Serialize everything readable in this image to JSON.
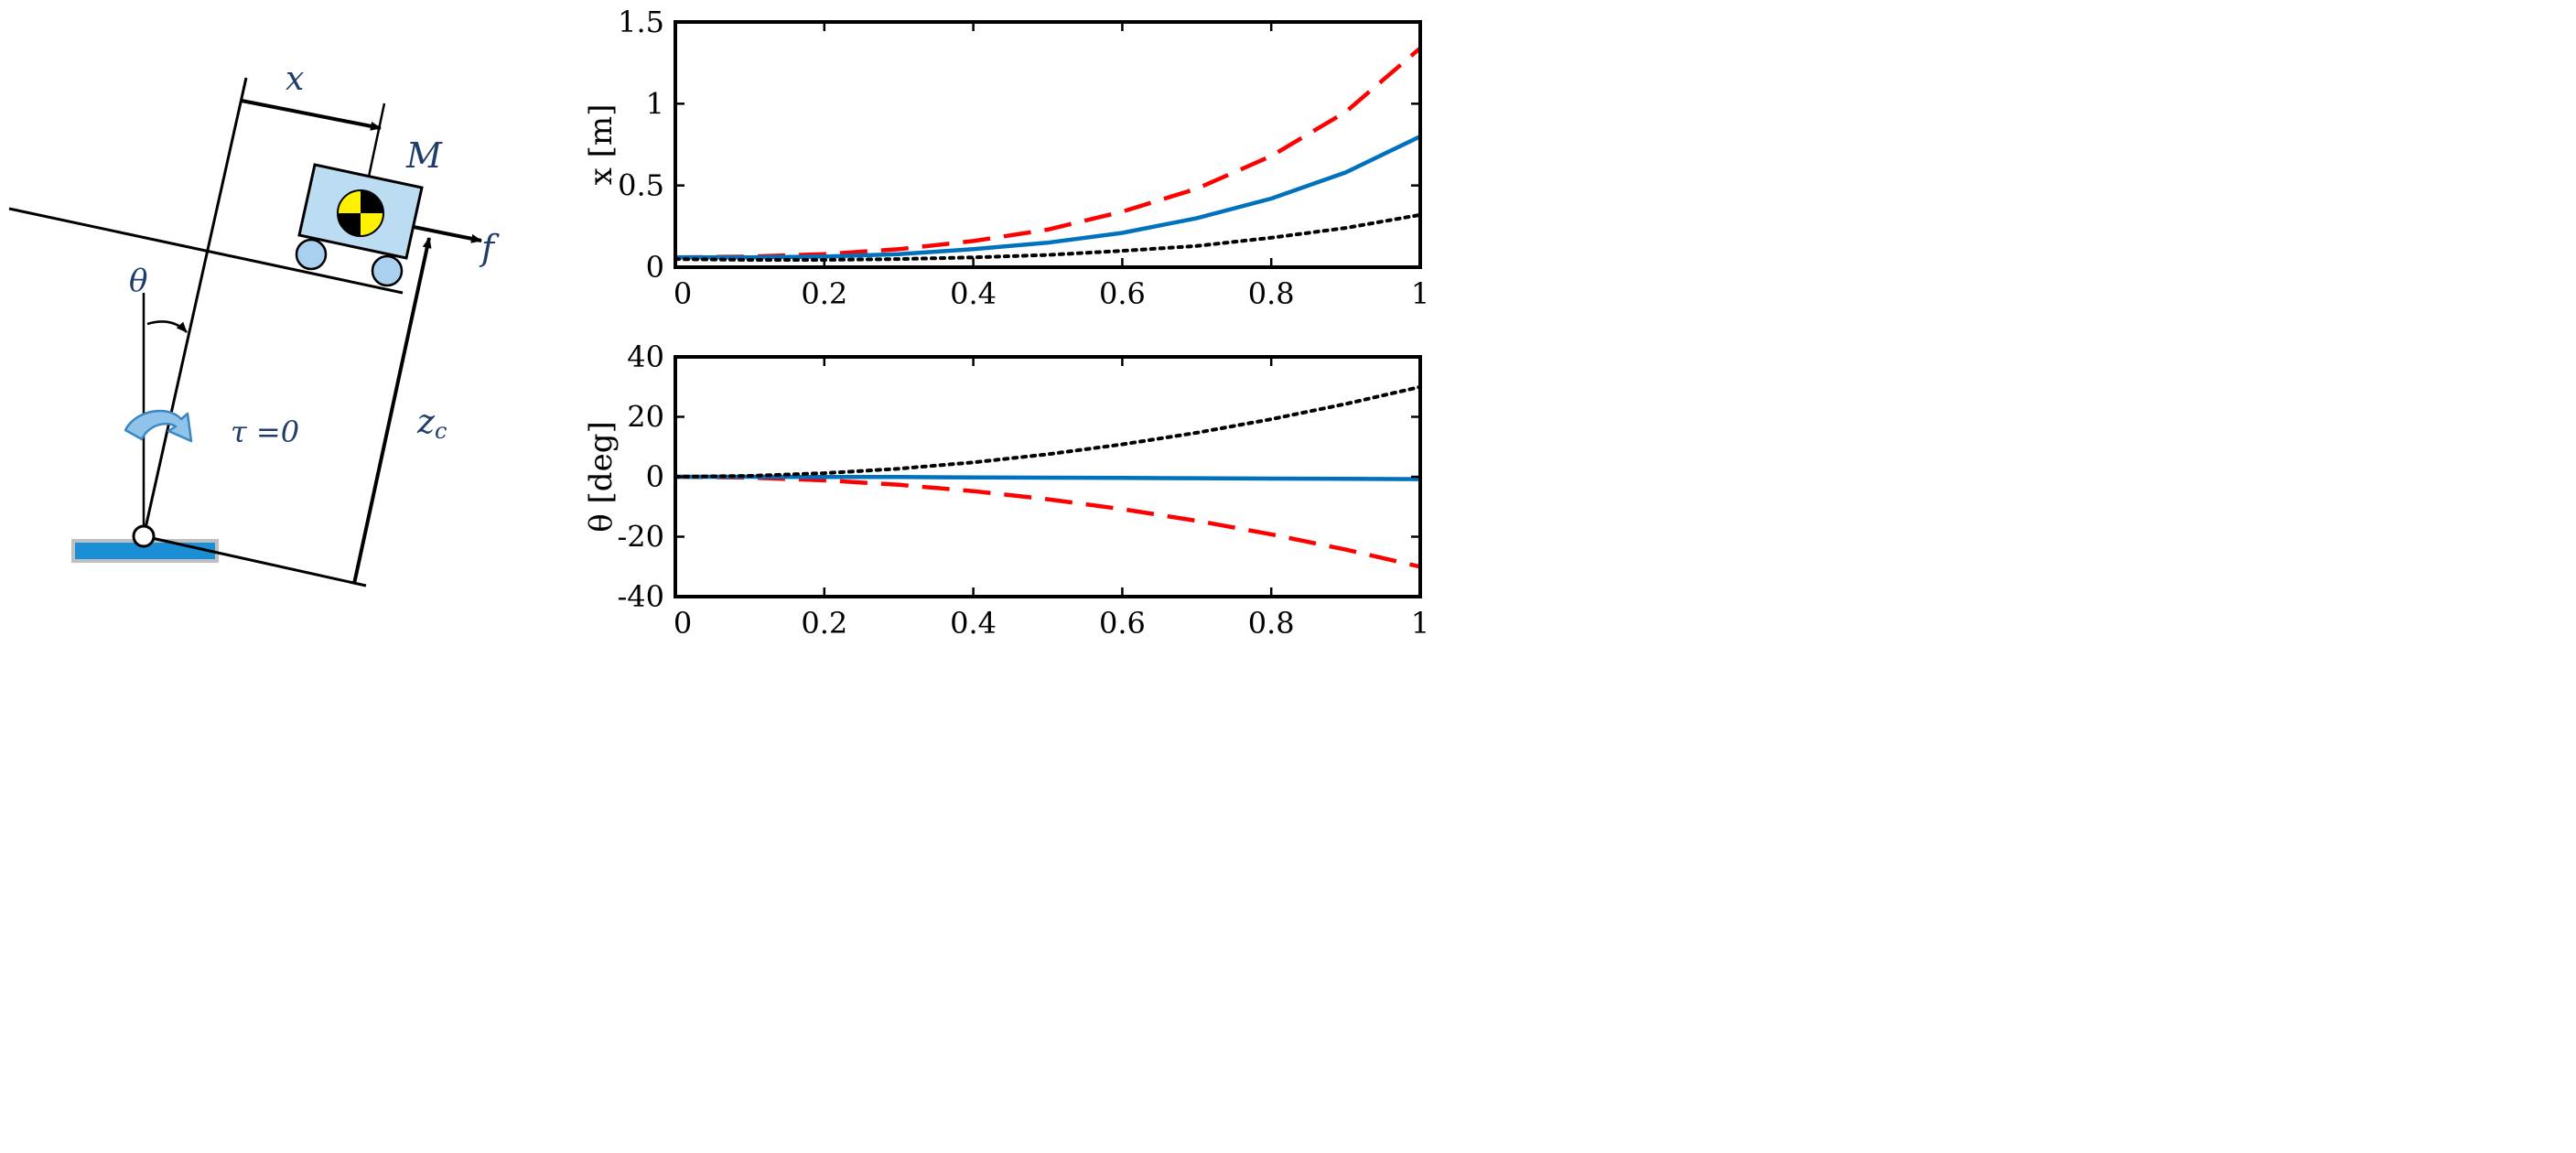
{
  "diagram": {
    "labels": {
      "x": "x",
      "mass": "M",
      "force": "f",
      "theta": "θ",
      "tau": "τ =0",
      "zc": "z",
      "zc_sub": "c"
    },
    "colors": {
      "label": "#1f3d6b",
      "cart_fill": "#bcdcf2",
      "wheel_fill": "#a9d0ee",
      "ground_fill": "#1a8fd6",
      "ground_border": "#bfbfbf",
      "arrow_fill": "#8fc3ea",
      "arrow_stroke": "#3b87c4",
      "target_yellow": "#fff200"
    }
  },
  "chart_data": [
    {
      "type": "line",
      "name": "cart-position",
      "title": "",
      "xlabel": "",
      "ylabel": "x [m]",
      "xlim": [
        0,
        1
      ],
      "ylim": [
        0,
        1.5
      ],
      "xticks": [
        0,
        0.2,
        0.4,
        0.6,
        0.8,
        1
      ],
      "yticks": [
        0,
        0.5,
        1,
        1.5
      ],
      "xtick_labels": [
        "0",
        "0.2",
        "0.4",
        "0.6",
        "0.8",
        "1"
      ],
      "ytick_labels": [
        "0",
        "0.5",
        "1",
        "1.5"
      ],
      "grid": false,
      "series": [
        {
          "name": "dashed",
          "color": "#ff0000",
          "style": "dashed",
          "x": [
            0,
            0.1,
            0.2,
            0.3,
            0.4,
            0.5,
            0.6,
            0.7,
            0.8,
            0.9,
            1.0
          ],
          "y": [
            0.06,
            0.065,
            0.08,
            0.11,
            0.16,
            0.23,
            0.34,
            0.48,
            0.68,
            0.95,
            1.34
          ]
        },
        {
          "name": "solid",
          "color": "#0072bd",
          "style": "solid",
          "x": [
            0,
            0.1,
            0.2,
            0.3,
            0.4,
            0.5,
            0.6,
            0.7,
            0.8,
            0.9,
            1.0
          ],
          "y": [
            0.06,
            0.06,
            0.065,
            0.08,
            0.11,
            0.15,
            0.21,
            0.3,
            0.42,
            0.58,
            0.8
          ]
        },
        {
          "name": "dotted",
          "color": "#000000",
          "style": "dotted",
          "x": [
            0,
            0.1,
            0.2,
            0.3,
            0.4,
            0.5,
            0.6,
            0.7,
            0.8,
            0.9,
            1.0
          ],
          "y": [
            0.05,
            0.045,
            0.045,
            0.05,
            0.06,
            0.075,
            0.1,
            0.13,
            0.18,
            0.24,
            0.32
          ]
        }
      ]
    },
    {
      "type": "line",
      "name": "pendulum-angle",
      "title": "",
      "xlabel": "",
      "ylabel": "θ  [deg]",
      "xlim": [
        0,
        1
      ],
      "ylim": [
        -40,
        40
      ],
      "xticks": [
        0,
        0.2,
        0.4,
        0.6,
        0.8,
        1
      ],
      "yticks": [
        -40,
        -20,
        0,
        20,
        40
      ],
      "xtick_labels": [
        "0",
        "0.2",
        "0.4",
        "0.6",
        "0.8",
        "1"
      ],
      "ytick_labels": [
        "-40",
        "-20",
        "0",
        "20",
        "40"
      ],
      "grid": false,
      "series": [
        {
          "name": "dashed",
          "color": "#ff0000",
          "style": "dashed",
          "x": [
            0,
            0.1,
            0.2,
            0.3,
            0.4,
            0.5,
            0.6,
            0.7,
            0.8,
            0.9,
            1.0
          ],
          "y": [
            0,
            -0.3,
            -1.2,
            -2.7,
            -4.8,
            -7.5,
            -10.8,
            -14.7,
            -19.2,
            -24.3,
            -30
          ]
        },
        {
          "name": "solid",
          "color": "#0072bd",
          "style": "solid",
          "x": [
            0,
            0.1,
            0.2,
            0.3,
            0.4,
            0.5,
            0.6,
            0.7,
            0.8,
            0.9,
            1.0
          ],
          "y": [
            0,
            0,
            -0.1,
            -0.1,
            -0.2,
            -0.3,
            -0.4,
            -0.5,
            -0.6,
            -0.7,
            -0.8
          ]
        },
        {
          "name": "dotted",
          "color": "#000000",
          "style": "dotted",
          "x": [
            0,
            0.1,
            0.2,
            0.3,
            0.4,
            0.5,
            0.6,
            0.7,
            0.8,
            0.9,
            1.0
          ],
          "y": [
            0,
            0.3,
            1.2,
            2.7,
            4.8,
            7.5,
            10.8,
            14.7,
            19.2,
            24.3,
            30
          ]
        }
      ]
    }
  ]
}
